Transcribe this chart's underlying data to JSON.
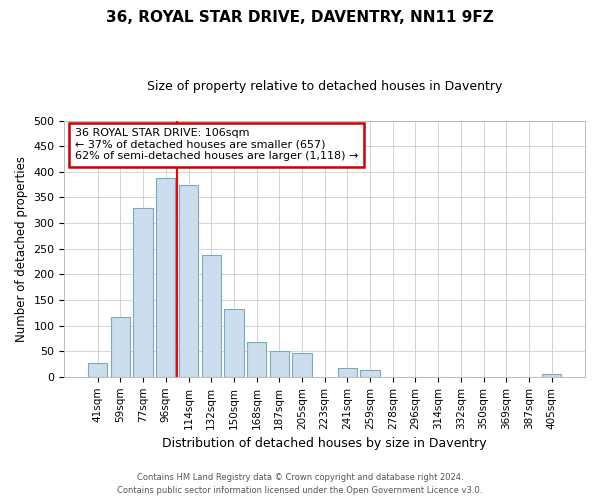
{
  "title": "36, ROYAL STAR DRIVE, DAVENTRY, NN11 9FZ",
  "subtitle": "Size of property relative to detached houses in Daventry",
  "xlabel": "Distribution of detached houses by size in Daventry",
  "ylabel": "Number of detached properties",
  "bar_labels": [
    "41sqm",
    "59sqm",
    "77sqm",
    "96sqm",
    "114sqm",
    "132sqm",
    "150sqm",
    "168sqm",
    "187sqm",
    "205sqm",
    "223sqm",
    "241sqm",
    "259sqm",
    "278sqm",
    "296sqm",
    "314sqm",
    "332sqm",
    "350sqm",
    "369sqm",
    "387sqm",
    "405sqm"
  ],
  "bar_values": [
    27,
    116,
    330,
    387,
    375,
    237,
    133,
    68,
    50,
    46,
    0,
    18,
    13,
    0,
    0,
    0,
    0,
    0,
    0,
    0,
    5
  ],
  "bar_color": "#ccdded",
  "bar_edge_color": "#7aaabb",
  "ylim": [
    0,
    500
  ],
  "yticks": [
    0,
    50,
    100,
    150,
    200,
    250,
    300,
    350,
    400,
    450,
    500
  ],
  "red_line_x": 3.5,
  "annotation_line1": "36 ROYAL STAR DRIVE: 106sqm",
  "annotation_line2": "← 37% of detached houses are smaller (657)",
  "annotation_line3": "62% of semi-detached houses are larger (1,118) →",
  "annotation_box_color": "#ffffff",
  "annotation_border_color": "#cc0000",
  "footer_line1": "Contains HM Land Registry data © Crown copyright and database right 2024.",
  "footer_line2": "Contains public sector information licensed under the Open Government Licence v3.0."
}
